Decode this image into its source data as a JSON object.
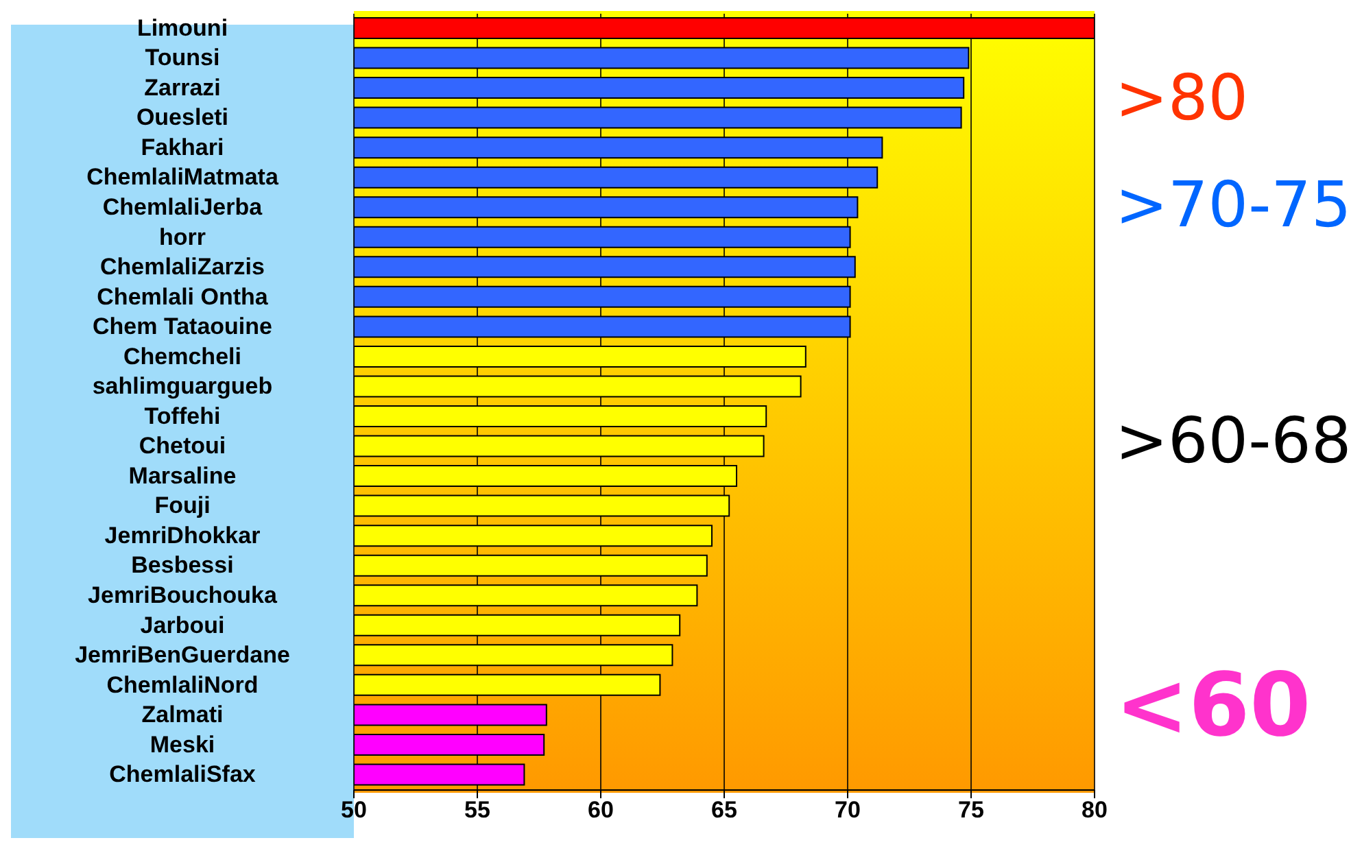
{
  "chart_data": {
    "type": "bar",
    "orientation": "horizontal",
    "categories": [
      "Limouni",
      "Tounsi",
      "Zarrazi",
      "Ouesleti",
      "Fakhari",
      "ChemlaliMatmata",
      "ChemlaliJerba",
      "horr",
      "ChemlaliZarzis",
      "Chemlali Ontha",
      "Chem Tataouine",
      "Chemcheli",
      "sahlimguargueb",
      "Toffehi",
      "Chetoui",
      "Marsaline",
      "Fouji",
      "JemriDhokkar",
      "Besbessi",
      "JemriBouchouka",
      "Jarboui",
      "JemriBenGuerdane",
      "ChemlaliNord",
      "Zalmati",
      "Meski",
      "ChemlaliSfax"
    ],
    "values": [
      80,
      74.9,
      74.7,
      74.6,
      71.4,
      71.2,
      70.4,
      70.1,
      70.3,
      70.1,
      70.1,
      68.3,
      68.1,
      66.7,
      66.6,
      65.5,
      65.2,
      64.5,
      64.3,
      63.9,
      63.2,
      62.9,
      62.4,
      57.8,
      57.7,
      56.9
    ],
    "colors": [
      "#ff0000",
      "#3366ff",
      "#3366ff",
      "#3366ff",
      "#3366ff",
      "#3366ff",
      "#3366ff",
      "#3366ff",
      "#3366ff",
      "#3366ff",
      "#3366ff",
      "#ffff00",
      "#ffff00",
      "#ffff00",
      "#ffff00",
      "#ffff00",
      "#ffff00",
      "#ffff00",
      "#ffff00",
      "#ffff00",
      "#ffff00",
      "#ffff00",
      "#ffff00",
      "#ff00ff",
      "#ff00ff",
      "#ff00ff"
    ],
    "xlim": [
      50,
      80
    ],
    "xticks": [
      50,
      55,
      60,
      65,
      70,
      75,
      80
    ],
    "grid": "x",
    "annotations": [
      ">80",
      ">70-75",
      ">60-68",
      "<60"
    ]
  }
}
